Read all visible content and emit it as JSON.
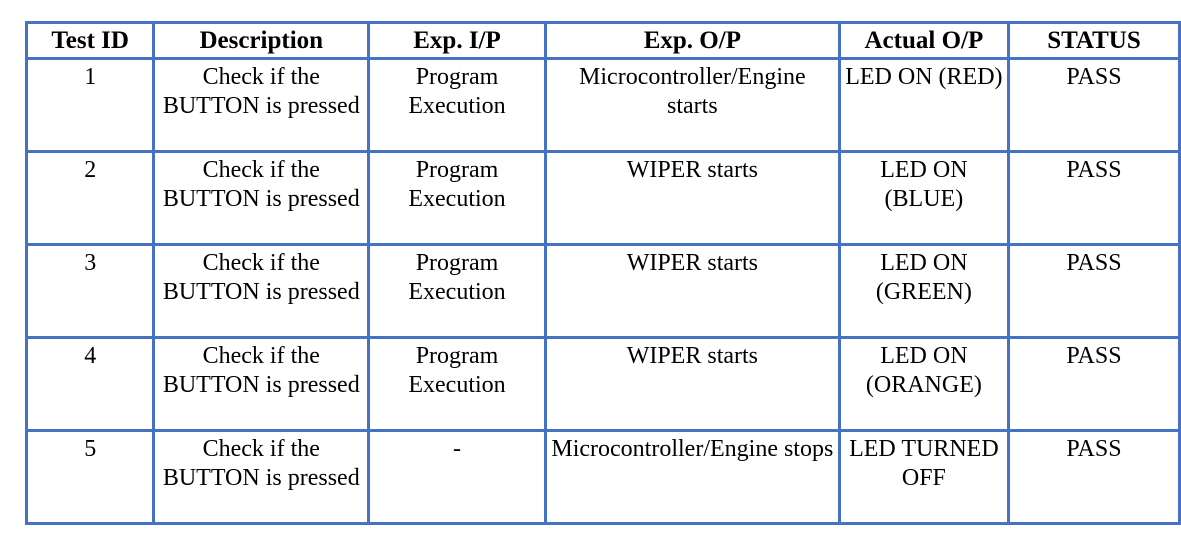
{
  "table": {
    "headers": [
      "Test ID",
      "Description",
      "Exp. I/P",
      "Exp. O/P",
      "Actual O/P",
      "STATUS"
    ],
    "rows": [
      {
        "id": "1",
        "description": "Check if the BUTTON is pressed",
        "exp_input": "Program Execution",
        "exp_output": "Microcontroller/Engine starts",
        "actual_output": "LED ON (RED)",
        "status": "PASS"
      },
      {
        "id": "2",
        "description": "Check if the BUTTON is pressed",
        "exp_input": "Program Execution",
        "exp_output": "WIPER starts",
        "actual_output": "LED ON (BLUE)",
        "status": "PASS"
      },
      {
        "id": "3",
        "description": "Check if the BUTTON is pressed",
        "exp_input": "Program Execution",
        "exp_output": "WIPER starts",
        "actual_output": "LED ON (GREEN)",
        "status": "PASS"
      },
      {
        "id": "4",
        "description": "Check if the BUTTON is pressed",
        "exp_input": "Program Execution",
        "exp_output": "WIPER starts",
        "actual_output": "LED ON (ORANGE)",
        "status": "PASS"
      },
      {
        "id": "5",
        "description": "Check if the BUTTON is pressed",
        "exp_input": "-",
        "exp_output": "Microcontroller/Engine stops",
        "actual_output": "LED TURNED OFF",
        "status": "PASS"
      }
    ],
    "border_color": "#4472c4"
  }
}
